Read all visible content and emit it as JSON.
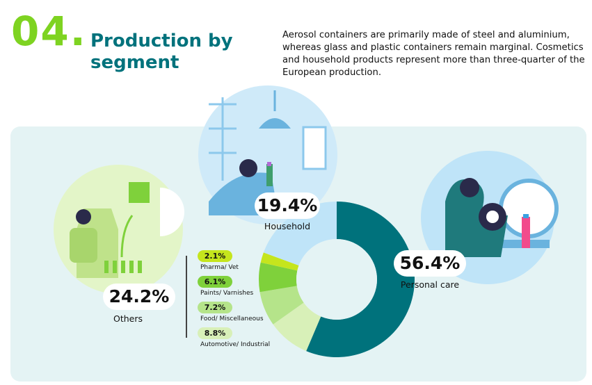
{
  "header": {
    "number": "04.",
    "title_line1": "Production by",
    "title_line2": "segment",
    "description": "Aerosol containers are primarily made of steel and aluminium, whereas glass and plastic containers remain marginal. Cosmetics and household products represent more than three-quarter of the European production."
  },
  "colors": {
    "number": "#7ed321",
    "title": "#00727c",
    "panel": "#e4f3f4",
    "personal_care": "#00727c",
    "household": "#bfe4f8",
    "others_light": "#d8f0b8",
    "others_mid": "#b5e48a",
    "others_green": "#7fd13b",
    "others_lime": "#c5e51d"
  },
  "chart_data": {
    "type": "pie",
    "style": "donut",
    "slices": [
      {
        "name": "Personal care",
        "value": 56.4,
        "label": "56.4%"
      },
      {
        "name": "Household",
        "value": 19.4,
        "label": "19.4%"
      },
      {
        "name": "Others",
        "value": 24.2,
        "label": "24.2%",
        "breakdown": [
          {
            "name": "Pharma/ Vet",
            "value": 2.1,
            "label": "2.1%"
          },
          {
            "name": "Paints/ Varnishes",
            "value": 6.1,
            "label": "6.1%"
          },
          {
            "name": "Food/ Miscellaneous",
            "value": 7.2,
            "label": "7.2%"
          },
          {
            "name": "Automotive/ Industrial",
            "value": 8.8,
            "label": "8.8%"
          }
        ]
      }
    ]
  }
}
